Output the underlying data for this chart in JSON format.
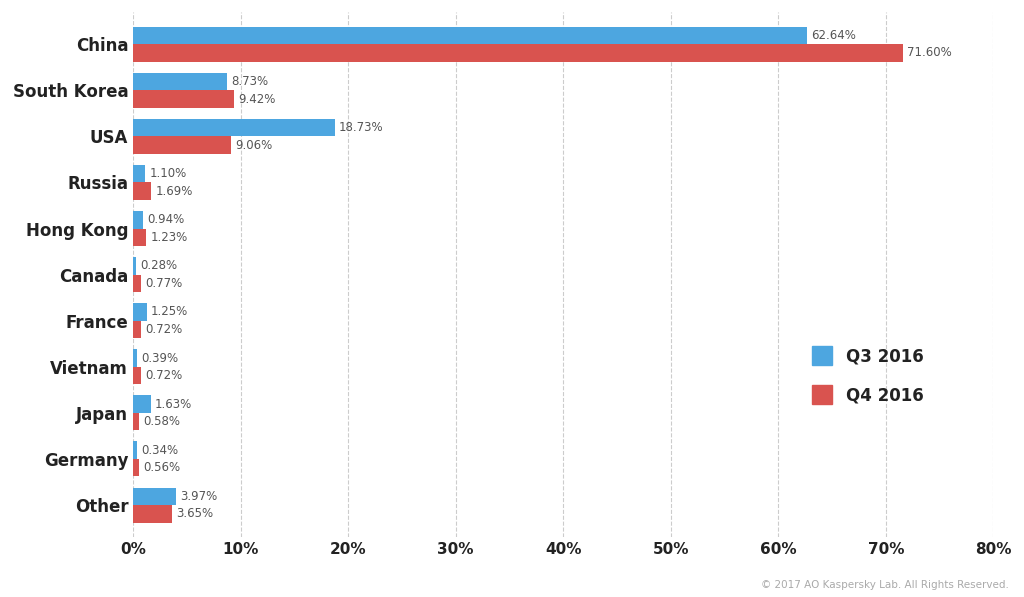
{
  "categories": [
    "China",
    "South Korea",
    "USA",
    "Russia",
    "Hong Kong",
    "Canada",
    "France",
    "Vietnam",
    "Japan",
    "Germany",
    "Other"
  ],
  "q3_values": [
    62.64,
    8.73,
    18.73,
    1.1,
    0.94,
    0.28,
    1.25,
    0.39,
    1.63,
    0.34,
    3.97
  ],
  "q4_values": [
    71.6,
    9.42,
    9.06,
    1.69,
    1.23,
    0.77,
    0.72,
    0.72,
    0.58,
    0.56,
    3.65
  ],
  "q3_color": "#4da6e0",
  "q4_color": "#d9534f",
  "background_color": "#ffffff",
  "xlim": [
    0,
    80
  ],
  "xticks": [
    0,
    10,
    20,
    30,
    40,
    50,
    60,
    70,
    80
  ],
  "xtick_labels": [
    "0%",
    "10%",
    "20%",
    "30%",
    "40%",
    "50%",
    "60%",
    "70%",
    "80%"
  ],
  "legend_q3": "Q3 2016",
  "legend_q4": "Q4 2016",
  "copyright": "© 2017 AO Kaspersky Lab. All Rights Reserved.",
  "bar_height": 0.38,
  "label_fontsize": 8.5,
  "category_fontsize": 12,
  "tick_fontsize": 11
}
